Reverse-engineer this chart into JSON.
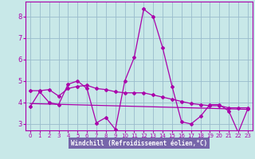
{
  "title": "",
  "xlabel": "Windchill (Refroidissement éolien,°C)",
  "bg_color": "#c8e8e8",
  "grid_color": "#99bbcc",
  "line_color": "#aa00aa",
  "xlabel_bg": "#7766aa",
  "xlim": [
    -0.5,
    23.5
  ],
  "ylim": [
    2.7,
    8.7
  ],
  "yticks": [
    3,
    4,
    5,
    6,
    7,
    8
  ],
  "xticks": [
    0,
    1,
    2,
    3,
    4,
    5,
    6,
    7,
    8,
    9,
    10,
    11,
    12,
    13,
    14,
    15,
    16,
    17,
    18,
    19,
    20,
    21,
    22,
    23
  ],
  "curve1_x": [
    0,
    1,
    2,
    3,
    4,
    5,
    6,
    7,
    8,
    9,
    10,
    11,
    12,
    13,
    14,
    15,
    16,
    17,
    18,
    19,
    20,
    21,
    22,
    23
  ],
  "curve1_y": [
    3.8,
    4.5,
    4.0,
    3.9,
    4.85,
    5.0,
    4.65,
    3.05,
    3.3,
    2.75,
    5.0,
    6.1,
    8.35,
    8.0,
    6.55,
    4.75,
    3.1,
    3.0,
    3.35,
    3.9,
    3.9,
    3.6,
    2.6,
    3.7
  ],
  "curve2_x": [
    0,
    1,
    2,
    3,
    4,
    5,
    6,
    7,
    8,
    9,
    10,
    11,
    12,
    13,
    14,
    15,
    16,
    17,
    18,
    19,
    20,
    21,
    22,
    23
  ],
  "curve2_y": [
    4.55,
    4.55,
    4.6,
    4.3,
    4.65,
    4.75,
    4.8,
    4.65,
    4.6,
    4.5,
    4.45,
    4.45,
    4.45,
    4.35,
    4.25,
    4.15,
    4.05,
    3.95,
    3.9,
    3.85,
    3.85,
    3.75,
    3.75,
    3.75
  ],
  "curve3_x": [
    0,
    23
  ],
  "curve3_y": [
    3.95,
    3.68
  ]
}
